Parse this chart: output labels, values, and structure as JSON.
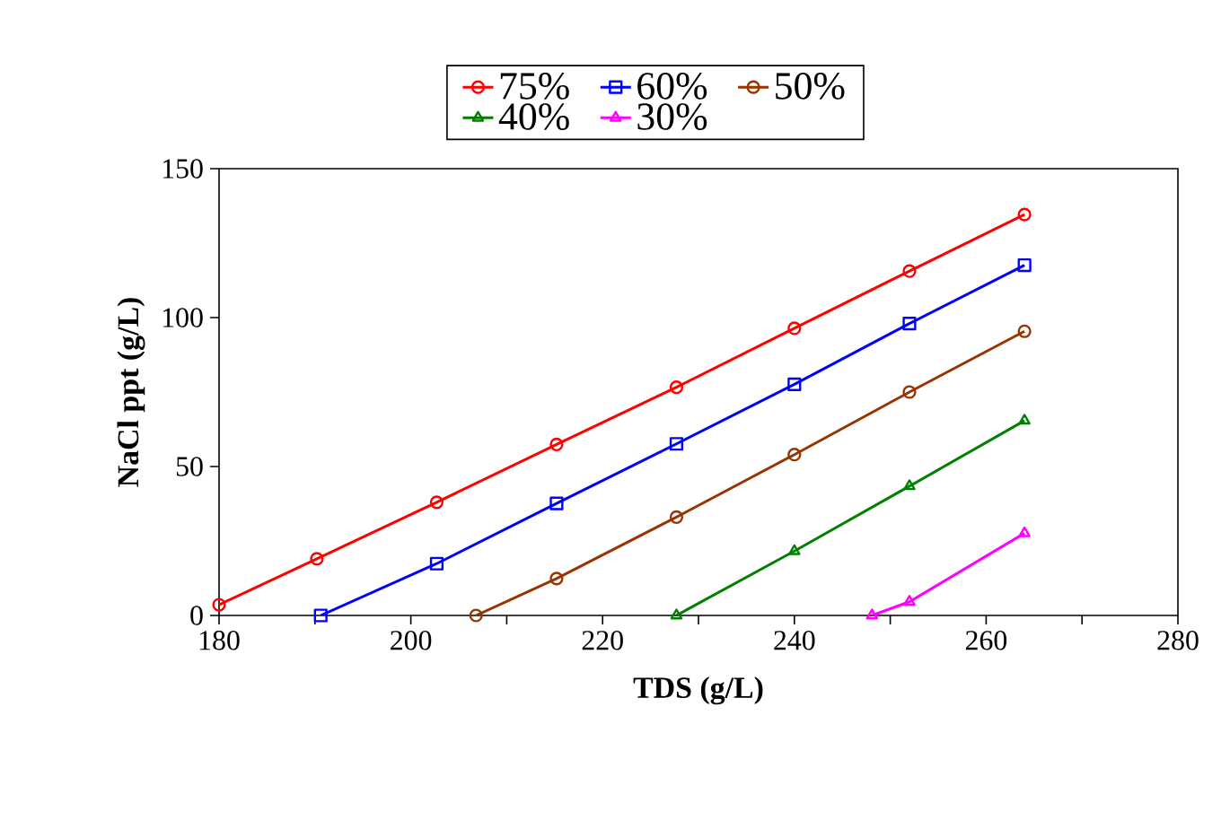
{
  "chart_data": {
    "type": "line",
    "xlabel": "TDS (g/L)",
    "ylabel": "NaCl ppt (g/L)",
    "xlim": [
      180,
      280
    ],
    "ylim": [
      0,
      150
    ],
    "xticks": [
      180,
      {
        "value": 190,
        "label": null
      },
      200,
      {
        "value": 210,
        "label": null
      },
      220,
      {
        "value": 230,
        "label": null
      },
      240,
      {
        "value": 250,
        "label": null
      },
      260,
      {
        "value": 270,
        "label": null
      },
      280
    ],
    "yticks": [
      0,
      50,
      100,
      150
    ],
    "grid": false,
    "legend": "top",
    "line_style": "solid",
    "series": [
      {
        "name": "75%",
        "color": "#ff0000",
        "marker": "circle",
        "x": [
          180,
          190.2,
          202.7,
          215.2,
          227.7,
          240,
          252,
          264
        ],
        "values": [
          3.6,
          19,
          38,
          57.4,
          76.6,
          96.4,
          115.6,
          134.6
        ]
      },
      {
        "name": "60%",
        "color": "#0000ff",
        "marker": "square",
        "x": [
          190.6,
          202.7,
          215.2,
          227.7,
          240,
          252,
          264
        ],
        "values": [
          0,
          17.4,
          37.6,
          57.6,
          77.6,
          98,
          117.6
        ]
      },
      {
        "name": "50%",
        "color": "#993300",
        "marker": "circle",
        "x": [
          206.8,
          215.2,
          227.7,
          240,
          252,
          264
        ],
        "values": [
          0,
          12.4,
          33,
          54,
          75,
          95.4
        ]
      },
      {
        "name": "40%",
        "color": "#008000",
        "marker": "triangle",
        "x": [
          227.7,
          240,
          252,
          264
        ],
        "values": [
          0,
          21.6,
          43.4,
          65.4
        ]
      },
      {
        "name": "30%",
        "color": "#ff00ff",
        "marker": "triangle",
        "x": [
          248.1,
          252,
          264
        ],
        "values": [
          0,
          4.6,
          27.6
        ]
      }
    ]
  }
}
